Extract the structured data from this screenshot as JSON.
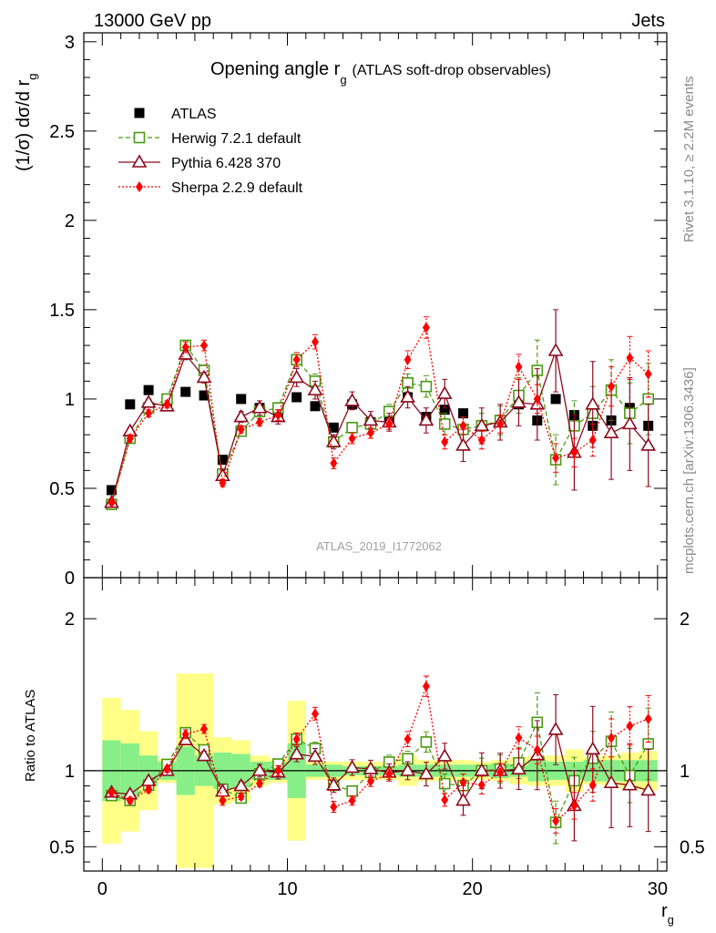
{
  "header": {
    "energy_label": "13000 GeV pp",
    "process_label": "Jets"
  },
  "side": {
    "rivet_label": "Rivet 3.1.10, ≥ 2.2M events",
    "mcplots_label": "mcplots.cern.ch [arXiv:1306.3436]"
  },
  "chart_data": {
    "type": "line",
    "title": "Opening angle r",
    "title_sub": "g",
    "title_suffix": "(ATLAS soft-drop observables)",
    "watermark": "ATLAS_2019_I1772062",
    "ylabel_main_pre": "(1/σ) dσ/d r",
    "ylabel_main_sub": "g",
    "ylabel_ratio": "Ratio to ATLAS",
    "xlabel": "r",
    "xlabel_sub": "g",
    "xlim": [
      -1,
      30.5
    ],
    "ylim_main": [
      0,
      3.05
    ],
    "ylim_ratio": [
      0.34,
      2.27
    ],
    "x_ticks": [
      0,
      10,
      20,
      30
    ],
    "y_ticks_main": [
      0,
      0.5,
      1,
      1.5,
      2,
      2.5,
      3
    ],
    "y_ticks_main_labels": [
      "0",
      "0.5",
      "1",
      "1.5",
      "2",
      "2.5",
      "3"
    ],
    "y_ticks_ratio": [
      0.5,
      1,
      2
    ],
    "y_ticks_ratio_labels": [
      "0.5",
      "1",
      "2"
    ],
    "x": [
      0.5,
      1.5,
      2.5,
      3.5,
      4.5,
      5.5,
      6.5,
      7.5,
      8.5,
      9.5,
      10.5,
      11.5,
      12.5,
      13.5,
      14.5,
      15.5,
      16.5,
      17.5,
      18.5,
      19.5,
      20.5,
      21.5,
      22.5,
      23.5,
      24.5,
      25.5,
      26.5,
      27.5,
      28.5,
      29.5
    ],
    "legend": {
      "placement": "top-left"
    },
    "series": [
      {
        "name": "ATLAS",
        "color": "#000000",
        "style": "data",
        "values": [
          0.49,
          0.97,
          1.05,
          0.96,
          1.04,
          1.02,
          0.66,
          1.0,
          0.95,
          0.91,
          1.01,
          0.96,
          0.84,
          0.97,
          0.87,
          0.88,
          1.01,
          0.9,
          0.94,
          0.92,
          0.85,
          0.87,
          0.97,
          0.88,
          1.0,
          0.91,
          0.85,
          0.88,
          0.95,
          0.85
        ]
      },
      {
        "name": "Herwig 7.2.1 default",
        "color": "#4a9a12",
        "style": "dashed",
        "marker": "open-square",
        "values": [
          0.41,
          0.78,
          0.95,
          1.0,
          1.3,
          1.16,
          0.58,
          0.82,
          0.93,
          0.95,
          1.22,
          1.1,
          0.76,
          0.84,
          0.86,
          0.93,
          1.09,
          1.07,
          0.86,
          0.83,
          0.85,
          0.88,
          1.02,
          1.16,
          0.66,
          0.85,
          0.92,
          1.05,
          0.92,
          1.0
        ],
        "errors": [
          0.01,
          0.02,
          0.02,
          0.02,
          0.03,
          0.03,
          0.02,
          0.02,
          0.03,
          0.03,
          0.04,
          0.04,
          0.03,
          0.03,
          0.04,
          0.04,
          0.05,
          0.06,
          0.06,
          0.07,
          0.07,
          0.08,
          0.1,
          0.17,
          0.14,
          0.14,
          0.15,
          0.17,
          0.17,
          0.2
        ]
      },
      {
        "name": "Pythia 6.428 370",
        "color": "#8b0a1e",
        "style": "solid",
        "marker": "open-triangle",
        "values": [
          0.42,
          0.82,
          0.98,
          0.96,
          1.25,
          1.12,
          0.57,
          0.9,
          0.95,
          0.9,
          1.12,
          1.05,
          0.76,
          0.99,
          0.88,
          0.87,
          1.01,
          0.88,
          1.03,
          0.74,
          0.85,
          0.87,
          0.98,
          0.97,
          1.27,
          0.7,
          0.97,
          0.81,
          0.86,
          0.74
        ],
        "errors": [
          0.01,
          0.02,
          0.02,
          0.02,
          0.03,
          0.03,
          0.03,
          0.03,
          0.04,
          0.04,
          0.05,
          0.05,
          0.04,
          0.05,
          0.05,
          0.05,
          0.06,
          0.07,
          0.08,
          0.09,
          0.1,
          0.1,
          0.13,
          0.2,
          0.23,
          0.21,
          0.24,
          0.26,
          0.26,
          0.23
        ]
      },
      {
        "name": "Sherpa 2.2.9 default",
        "color": "#ff0000",
        "style": "dotted",
        "marker": "filled-diamond",
        "values": [
          0.42,
          0.78,
          0.92,
          0.97,
          1.29,
          1.3,
          0.53,
          0.83,
          0.87,
          0.91,
          1.22,
          1.32,
          0.64,
          0.78,
          0.81,
          0.86,
          1.22,
          1.4,
          0.76,
          0.85,
          0.77,
          0.86,
          1.18,
          1.0,
          0.67,
          0.7,
          0.77,
          1.07,
          1.23,
          1.14
        ],
        "errors": [
          0.01,
          0.02,
          0.02,
          0.02,
          0.03,
          0.03,
          0.02,
          0.02,
          0.02,
          0.03,
          0.04,
          0.04,
          0.03,
          0.03,
          0.03,
          0.03,
          0.05,
          0.06,
          0.04,
          0.05,
          0.05,
          0.05,
          0.07,
          0.08,
          0.08,
          0.08,
          0.09,
          0.11,
          0.12,
          0.13
        ]
      }
    ],
    "ratio_bands": {
      "green_halfwidth": [
        0.2,
        0.18,
        0.1,
        0.06,
        0.16,
        0.1,
        0.12,
        0.11,
        0.06,
        0.06,
        0.18,
        0.04,
        0.04,
        0.03,
        0.03,
        0.03,
        0.04,
        0.04,
        0.04,
        0.04,
        0.04,
        0.05,
        0.04,
        0.07,
        0.06,
        0.06,
        0.07,
        0.07,
        0.07,
        0.07
      ],
      "yellow_halfwidth": [
        0.48,
        0.4,
        0.26,
        0.08,
        0.64,
        0.64,
        0.22,
        0.2,
        0.1,
        0.08,
        0.46,
        0.06,
        0.06,
        0.06,
        0.06,
        0.06,
        0.1,
        0.07,
        0.07,
        0.07,
        0.06,
        0.07,
        0.09,
        0.1,
        0.1,
        0.14,
        0.09,
        0.1,
        0.12,
        0.13
      ]
    }
  }
}
